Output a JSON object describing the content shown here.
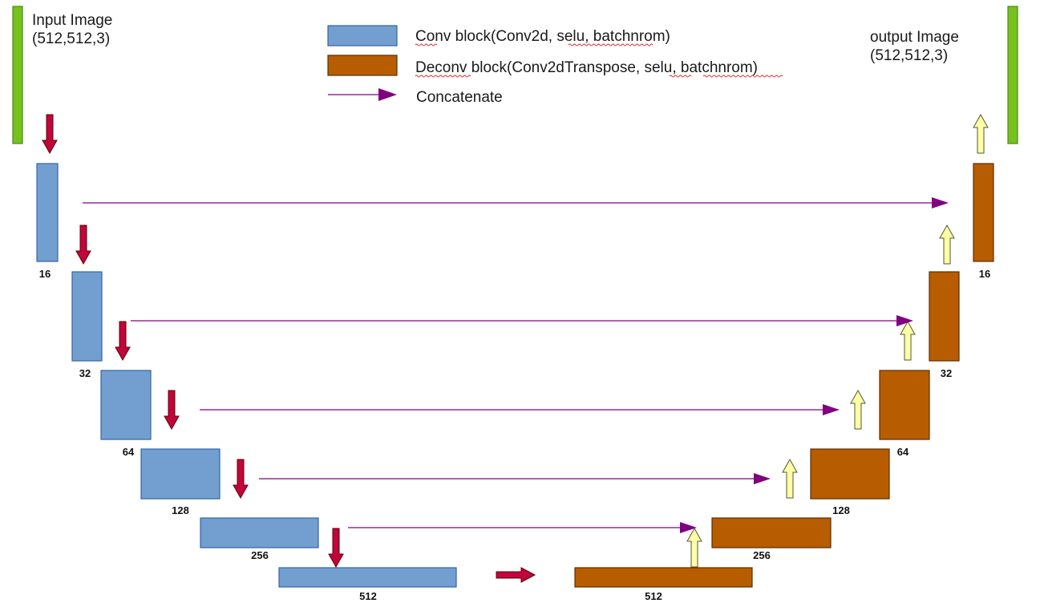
{
  "input_image": {
    "line1": "Input Image",
    "line2": "(512,512,3)"
  },
  "output_image": {
    "line1": "output Image",
    "line2": "(512,512,3)"
  },
  "legend": {
    "conv": {
      "label": "Conv block(Conv2d, selu, batchnrom)"
    },
    "deconv": {
      "label": "Deconv block(Conv2dTranspose, selu, batchnrom)"
    },
    "concat": {
      "label": "Concatenate"
    }
  },
  "encoder": [
    {
      "channels": "16"
    },
    {
      "channels": "32"
    },
    {
      "channels": "64"
    },
    {
      "channels": "128"
    },
    {
      "channels": "256"
    },
    {
      "channels": "512"
    }
  ],
  "decoder": [
    {
      "channels": "16"
    },
    {
      "channels": "32"
    },
    {
      "channels": "64"
    },
    {
      "channels": "128"
    },
    {
      "channels": "256"
    },
    {
      "channels": "512"
    }
  ],
  "colors": {
    "conv_block": "#729fcf",
    "deconv_block": "#b85c00",
    "io_bar": "#77c11e",
    "down_arrow": "#c0063b",
    "up_arrow": "#ffffa6",
    "concat": "#800080"
  }
}
